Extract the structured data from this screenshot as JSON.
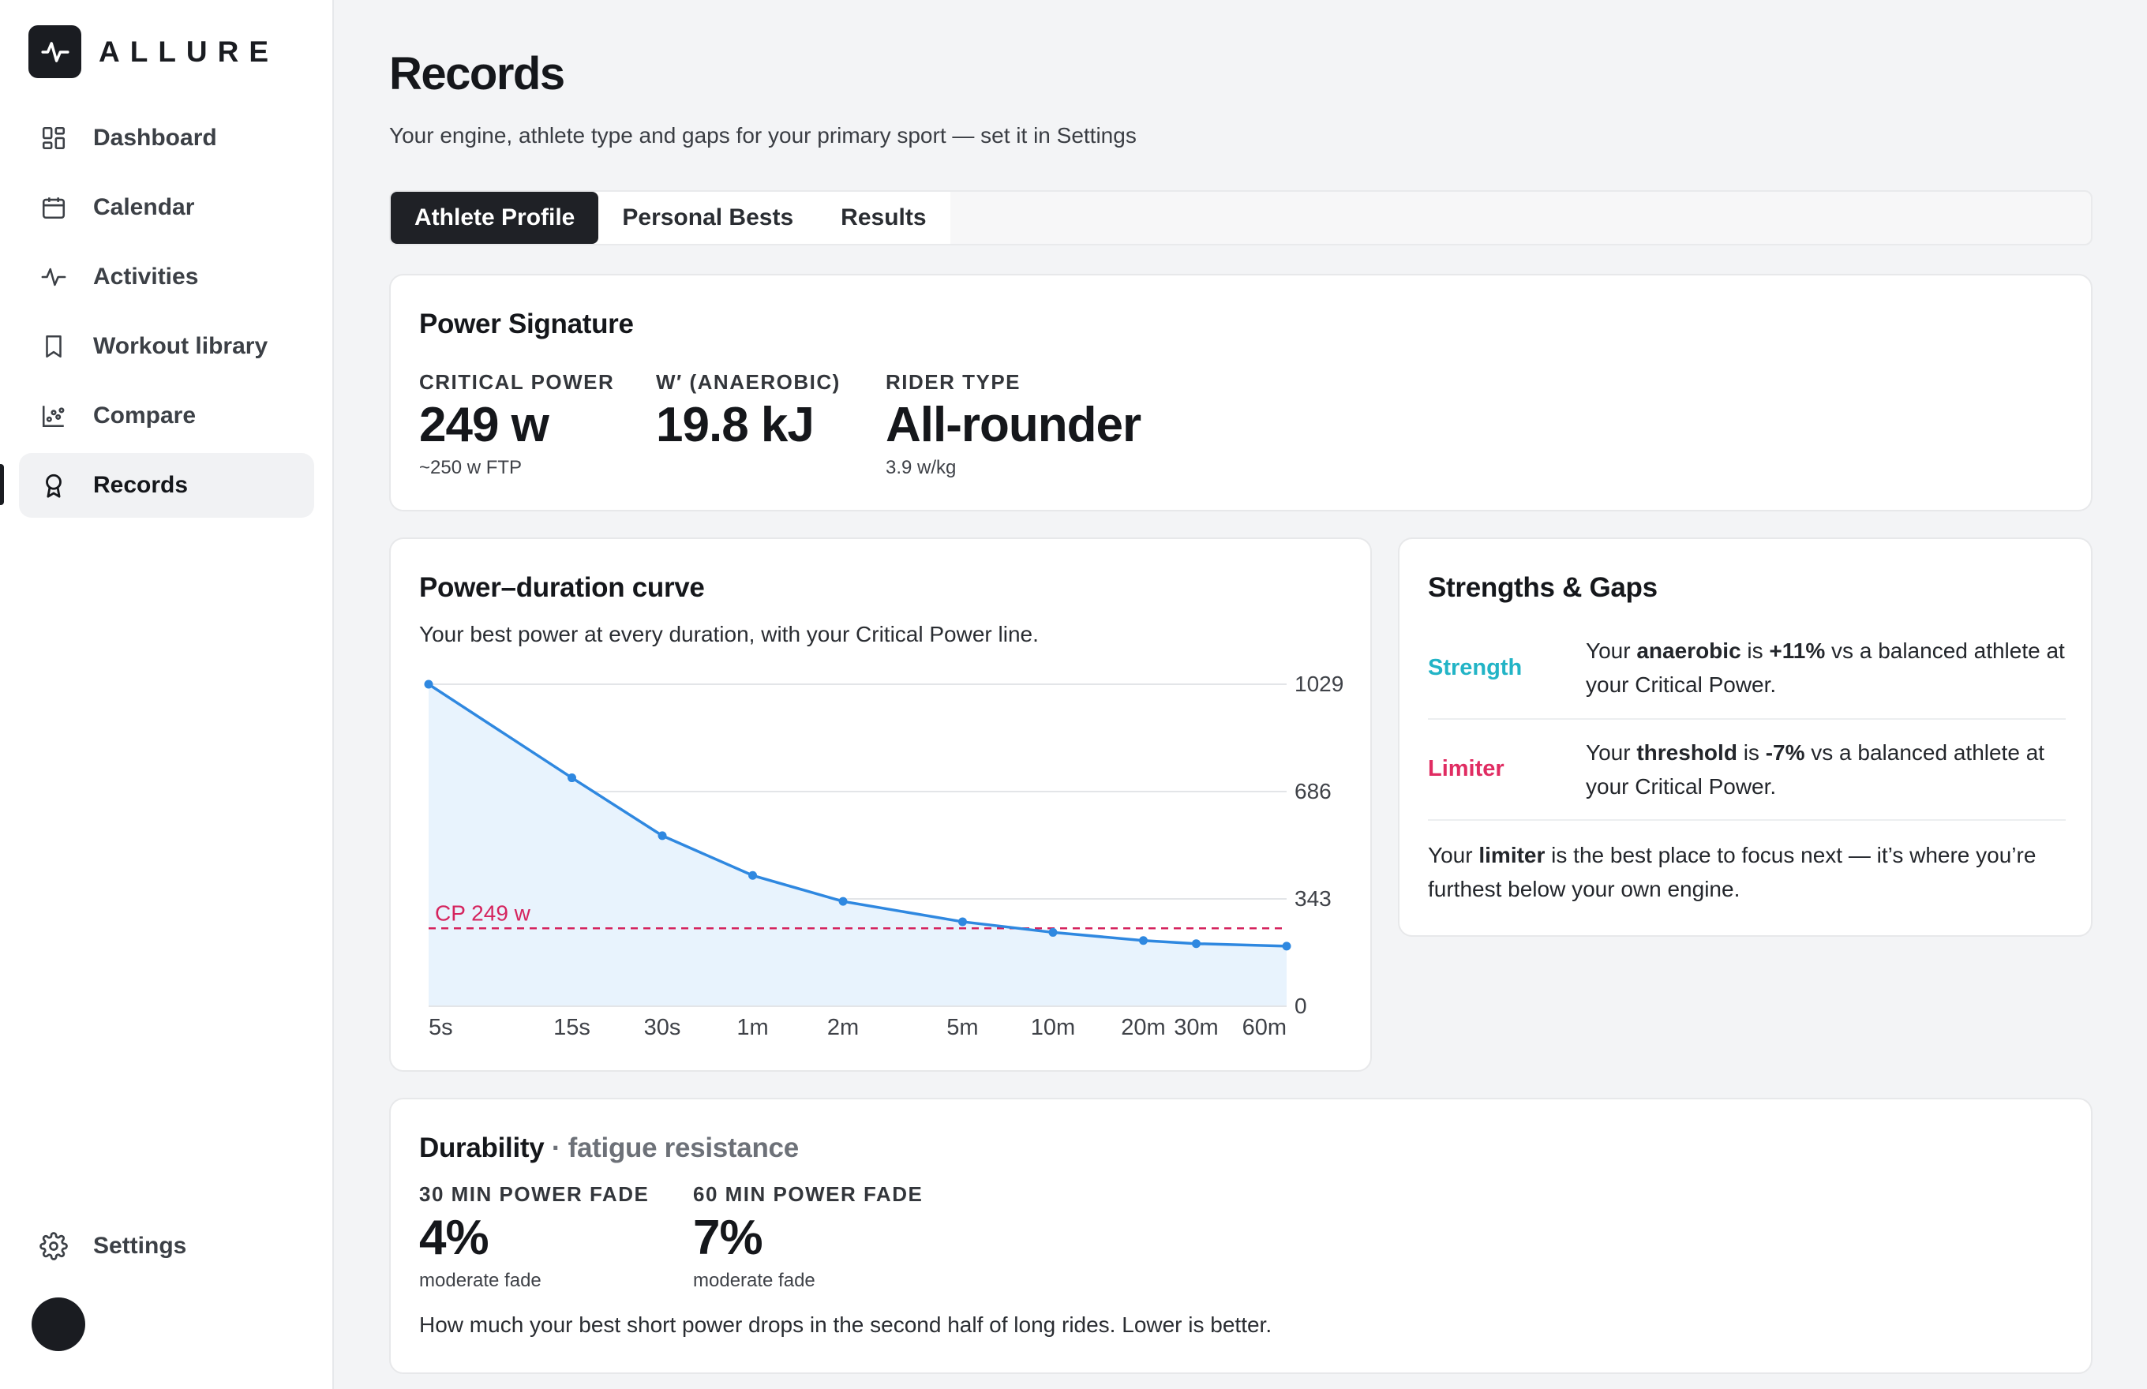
{
  "app": {
    "name": "ALLURE"
  },
  "nav": {
    "items": [
      {
        "label": "Dashboard",
        "icon": "dashboard-icon"
      },
      {
        "label": "Calendar",
        "icon": "calendar-icon"
      },
      {
        "label": "Activities",
        "icon": "activity-pulse-icon"
      },
      {
        "label": "Workout library",
        "icon": "bookmark-icon"
      },
      {
        "label": "Compare",
        "icon": "scatter-chart-icon"
      },
      {
        "label": "Records",
        "icon": "award-icon",
        "active": true
      }
    ],
    "settings": {
      "label": "Settings",
      "icon": "gear-icon"
    }
  },
  "page": {
    "title": "Records",
    "subtitle": "Your engine, athlete type and gaps for your primary sport — set it in Settings"
  },
  "tabs": [
    {
      "label": "Athlete Profile",
      "active": true
    },
    {
      "label": "Personal Bests",
      "active": false
    },
    {
      "label": "Results",
      "active": false
    }
  ],
  "power_signature": {
    "title": "Power Signature",
    "stats": [
      {
        "label": "CRITICAL POWER",
        "value": "249 w",
        "note": "~250 w FTP"
      },
      {
        "label": "W′ (ANAEROBIC)",
        "value": "19.8 kJ",
        "note": ""
      },
      {
        "label": "RIDER TYPE",
        "value": "All-rounder",
        "note": "3.9 w/kg"
      }
    ]
  },
  "pd_curve": {
    "title": "Power–duration curve",
    "subtitle": "Your best power at every duration, with your Critical Power line.",
    "cp_label": "CP 249 w"
  },
  "chart_data": {
    "type": "area",
    "title": "Power–duration curve",
    "x": [
      "5s",
      "15s",
      "30s",
      "1m",
      "2m",
      "5m",
      "10m",
      "20m",
      "30m",
      "60m"
    ],
    "x_seconds": [
      5,
      15,
      30,
      60,
      120,
      300,
      600,
      1200,
      1800,
      3600
    ],
    "values": [
      1029,
      730,
      545,
      418,
      335,
      270,
      236,
      210,
      200,
      192
    ],
    "y_ticks": [
      0,
      343,
      686,
      1029
    ],
    "ylim": [
      0,
      1029
    ],
    "x_scale": "log",
    "reference_line": {
      "name": "CP 249 w",
      "value": 249
    },
    "grid": true,
    "colors": {
      "line": "#2f88e0",
      "fill": "#e8f3fd",
      "cp": "#d5245e"
    }
  },
  "strengths": {
    "title": "Strengths & Gaps",
    "rows": [
      {
        "kind": "Strength",
        "color": "#22b4c6",
        "pre": "Your ",
        "metric": "anaerobic",
        "mid": " is ",
        "delta": "+11%",
        "post": " vs a balanced athlete at your Critical Power."
      },
      {
        "kind": "Limiter",
        "color": "#e02c62",
        "pre": "Your ",
        "metric": "threshold",
        "mid": " is ",
        "delta": "-7%",
        "post": " vs a balanced athlete at your Critical Power."
      }
    ],
    "foot_pre": "Your ",
    "foot_bold": "limiter",
    "foot_post": " is the best place to focus next — it’s where you’re furthest below your own engine."
  },
  "durability": {
    "title": "Durability",
    "subtitle": "· fatigue resistance",
    "stats": [
      {
        "label": "30 MIN POWER FADE",
        "value": "4%",
        "note": "moderate fade"
      },
      {
        "label": "60 MIN POWER FADE",
        "value": "7%",
        "note": "moderate fade"
      }
    ],
    "description": "How much your best short power drops in the second half of long rides. Lower is better."
  }
}
